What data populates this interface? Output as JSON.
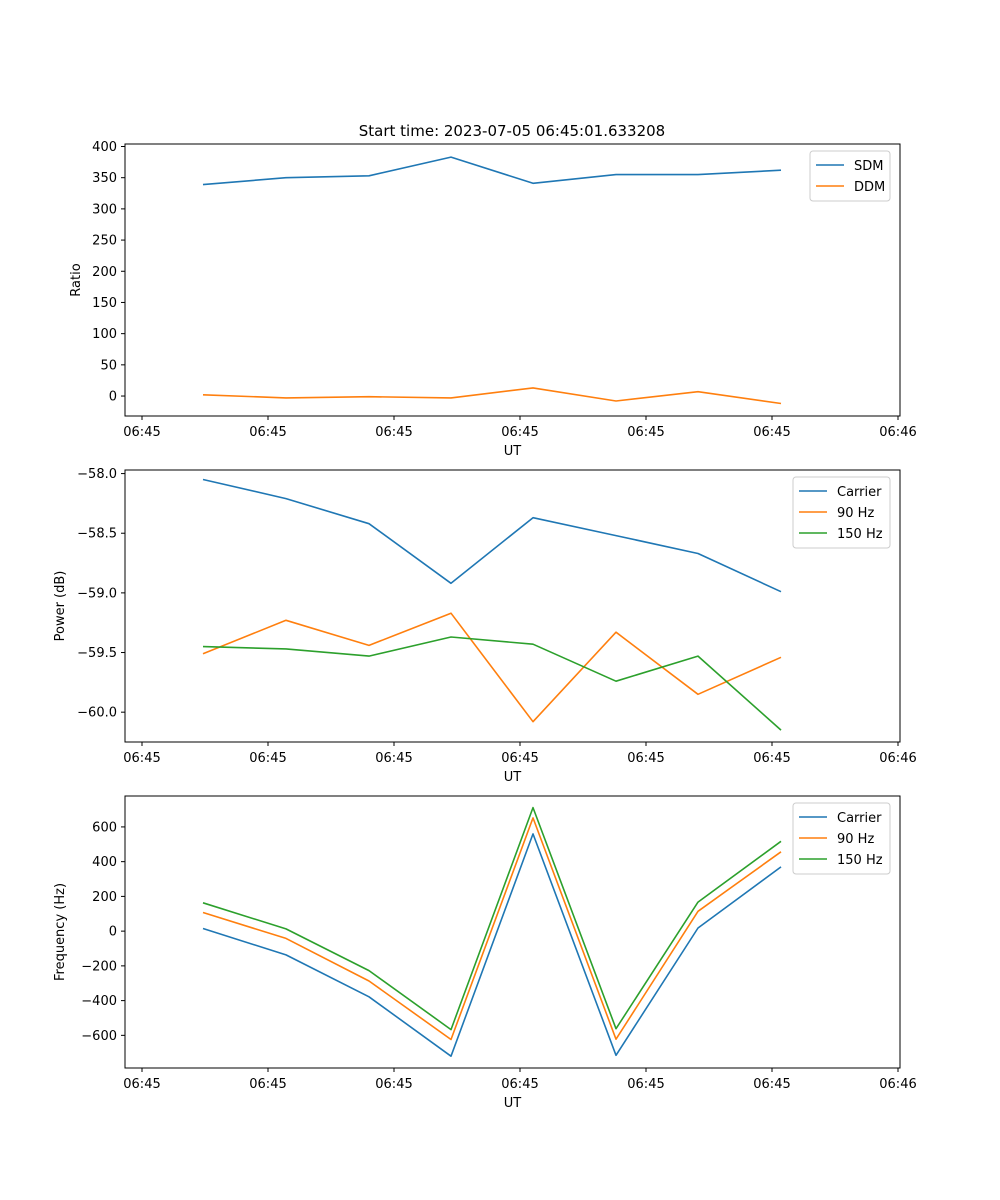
{
  "figure_title": "Start time: 2023-07-05 06:45:01.633208",
  "colors": {
    "blue": "#1f77b4",
    "orange": "#ff7f0e",
    "green": "#2ca02c"
  },
  "chart_data": [
    {
      "type": "line",
      "xlabel": "UT",
      "ylabel": "Ratio",
      "x_tick_labels": [
        "06:45",
        "06:45",
        "06:45",
        "06:45",
        "06:45",
        "06:45",
        "06:45",
        "06:46"
      ],
      "y_ticks": [
        0,
        50,
        100,
        150,
        200,
        250,
        300,
        350,
        400
      ],
      "ylim": [
        -32,
        404
      ],
      "x_samples": [
        1,
        2,
        3,
        4,
        5,
        6,
        7,
        8
      ],
      "legend_position": "top-right",
      "series": [
        {
          "name": "SDM",
          "color": "#1f77b4",
          "values": [
            339,
            350,
            353,
            383,
            341,
            355,
            355,
            362
          ]
        },
        {
          "name": "DDM",
          "color": "#ff7f0e",
          "values": [
            2,
            -3,
            -1,
            -3,
            13,
            -8,
            7,
            -12
          ]
        }
      ]
    },
    {
      "type": "line",
      "xlabel": "UT",
      "ylabel": "Power (dB)",
      "x_tick_labels": [
        "06:45",
        "06:45",
        "06:45",
        "06:45",
        "06:45",
        "06:45",
        "06:45",
        "06:46"
      ],
      "y_ticks": [
        -60.0,
        -59.5,
        -59.0,
        -58.5,
        -58.0
      ],
      "y_tick_labels": [
        "−60.0",
        "−59.5",
        "−59.0",
        "−58.5",
        "−58.0"
      ],
      "ylim": [
        -60.25,
        -57.97
      ],
      "x_samples": [
        1,
        2,
        3,
        4,
        5,
        6,
        7,
        8
      ],
      "legend_position": "top-right",
      "series": [
        {
          "name": "Carrier",
          "color": "#1f77b4",
          "values": [
            -58.05,
            -58.21,
            -58.42,
            -58.92,
            -58.37,
            -58.52,
            -58.67,
            -58.99
          ]
        },
        {
          "name": "90 Hz",
          "color": "#ff7f0e",
          "values": [
            -59.51,
            -59.23,
            -59.44,
            -59.17,
            -60.08,
            -59.33,
            -59.85,
            -59.54
          ]
        },
        {
          "name": "150 Hz",
          "color": "#2ca02c",
          "values": [
            -59.45,
            -59.47,
            -59.53,
            -59.37,
            -59.43,
            -59.74,
            -59.53,
            -60.15
          ]
        }
      ]
    },
    {
      "type": "line",
      "xlabel": "UT",
      "ylabel": "Frequency (Hz)",
      "x_tick_labels": [
        "06:45",
        "06:45",
        "06:45",
        "06:45",
        "06:45",
        "06:45",
        "06:45",
        "06:46"
      ],
      "y_ticks": [
        -600,
        -400,
        -200,
        0,
        200,
        400,
        600
      ],
      "y_tick_labels": [
        "−600",
        "−400",
        "−200",
        "0",
        "200",
        "400",
        "600"
      ],
      "ylim": [
        -788,
        778
      ],
      "x_samples": [
        1,
        2,
        3,
        4,
        5,
        6,
        7,
        8
      ],
      "legend_position": "top-right",
      "series": [
        {
          "name": "Carrier",
          "color": "#1f77b4",
          "values": [
            15,
            -137,
            -378,
            -720,
            560,
            -715,
            18,
            370
          ]
        },
        {
          "name": "90 Hz",
          "color": "#ff7f0e",
          "values": [
            107,
            -42,
            -287,
            -624,
            652,
            -622,
            114,
            457
          ]
        },
        {
          "name": "150 Hz",
          "color": "#2ca02c",
          "values": [
            163,
            13,
            -227,
            -567,
            711,
            -562,
            167,
            517
          ]
        }
      ]
    }
  ]
}
